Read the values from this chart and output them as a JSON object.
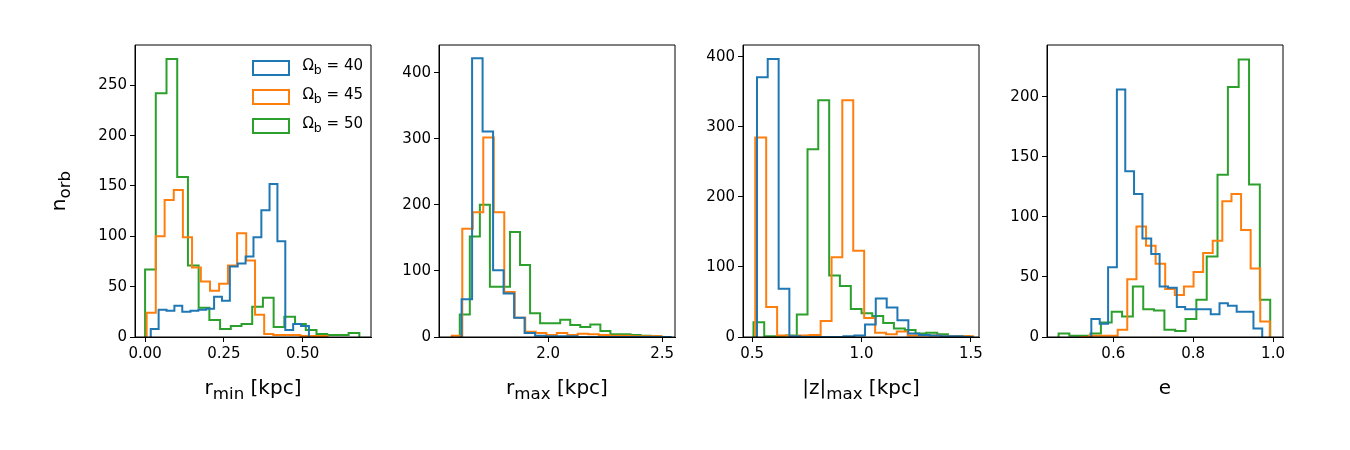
{
  "chart_data": [
    {
      "type": "histogram",
      "xlabel": "r$_{min}$ [kpc]",
      "ylabel": "n$_{orb}$",
      "legend": "top right",
      "xlim": [
        -0.032,
        0.717
      ],
      "ylim": [
        0,
        290
      ],
      "xticks": [
        {
          "value": 0,
          "label": "0.00"
        },
        0.25,
        {
          "value": 0.5,
          "label": "0.50"
        }
      ],
      "yticks": [
        0,
        50,
        100,
        150,
        200,
        250
      ],
      "bins": [
        0.018,
        0.043,
        0.068,
        0.093,
        0.118,
        0.144,
        0.169,
        0.194,
        0.219,
        0.244,
        0.269,
        0.294,
        0.319,
        0.344,
        0.369,
        0.395,
        0.42,
        0.445,
        0.47,
        0.495,
        0.52
      ],
      "series": [
        {
          "name": "Ω$_{b}$ = 40",
          "color": "#1f77b4",
          "values": [
            8,
            27,
            26,
            31,
            25,
            26,
            27,
            28,
            40,
            36,
            70,
            73,
            80,
            99,
            126,
            152,
            95,
            7,
            13,
            11
          ]
        },
        {
          "name": "Ω$_{b}$ = 45",
          "color": "#ff7f0e",
          "bins": [
            0.005,
            0.034,
            0.062,
            0.091,
            0.12,
            0.149,
            0.177,
            0.206,
            0.235,
            0.263,
            0.292,
            0.321,
            0.349,
            0.378,
            0.407,
            0.436,
            0.464,
            0.493,
            0.522,
            0.55,
            0.579
          ],
          "values": [
            24,
            100,
            136,
            146,
            99,
            69,
            55,
            46,
            53,
            71,
            103,
            76,
            22,
            3,
            2,
            2,
            2,
            1,
            1,
            1
          ]
        },
        {
          "name": "Ω$_{b}$ = 50",
          "color": "#2ca02c",
          "bins": [
            0,
            0.034,
            0.068,
            0.102,
            0.136,
            0.17,
            0.204,
            0.238,
            0.272,
            0.306,
            0.34,
            0.374,
            0.408,
            0.442,
            0.476,
            0.51,
            0.544,
            0.578,
            0.612,
            0.646,
            0.68
          ],
          "values": [
            67,
            242,
            276,
            159,
            71,
            29,
            17,
            8,
            11,
            13,
            30,
            39,
            10,
            20,
            13,
            7,
            3,
            2,
            2,
            4
          ]
        }
      ]
    },
    {
      "type": "histogram",
      "xlabel": "r$_{max}$ [kpc]",
      "xlim": [
        1.522,
        2.556
      ],
      "ylim": [
        0,
        442
      ],
      "xticks": [
        {
          "value": 2,
          "label": "2.0"
        },
        2.5
      ],
      "yticks": [
        0,
        100,
        200,
        300,
        400
      ],
      "bins": [
        1.621,
        1.667,
        1.713,
        1.759,
        1.805,
        1.851,
        1.897,
        1.943,
        1.989,
        2.035,
        2.081,
        2.127,
        2.173,
        2.219,
        2.265,
        2.311,
        2.357,
        2.403,
        2.449,
        2.495,
        2.541
      ],
      "series": [
        {
          "color": "#1f77b4",
          "values": [
            57,
            422,
            311,
            101,
            66,
            29,
            6,
            2,
            1,
            1,
            1,
            0,
            0,
            0,
            0,
            0,
            0,
            0,
            0,
            0
          ]
        },
        {
          "color": "#ff7f0e",
          "bins": [
            1.578,
            1.624,
            1.67,
            1.716,
            1.762,
            1.808,
            1.854,
            1.9,
            1.946,
            1.992,
            2.038,
            2.084,
            2.13,
            2.176,
            2.222,
            2.268,
            2.314,
            2.36,
            2.406,
            2.452,
            2.498
          ],
          "values": [
            2,
            164,
            189,
            302,
            189,
            68,
            29,
            8,
            6,
            3,
            6,
            3,
            5,
            4,
            3,
            2,
            2,
            1,
            1,
            1
          ]
        },
        {
          "color": "#2ca02c",
          "bins": [
            1.613,
            1.657,
            1.701,
            1.745,
            1.789,
            1.833,
            1.877,
            1.921,
            1.965,
            2.009,
            2.053,
            2.097,
            2.141,
            2.185,
            2.229,
            2.273,
            2.317,
            2.361,
            2.405,
            2.449,
            2.493
          ],
          "values": [
            34,
            152,
            200,
            76,
            76,
            159,
            109,
            36,
            21,
            21,
            26,
            18,
            15,
            19,
            9,
            4,
            4,
            3,
            2,
            1
          ]
        }
      ]
    },
    {
      "type": "histogram",
      "xlabel": "|z|$_{max}$ [kpc]",
      "xlim": [
        0.458,
        1.537
      ],
      "ylim": [
        0,
        417
      ],
      "xticks": [
        0.5,
        {
          "value": 1,
          "label": "1.0"
        },
        1.5
      ],
      "yticks": [
        0,
        100,
        200,
        300,
        400
      ],
      "bins": [
        0.522,
        0.571,
        0.621,
        0.67,
        0.72,
        0.769,
        0.818,
        0.868,
        0.917,
        0.967,
        1.016,
        1.065,
        1.115,
        1.164,
        1.214,
        1.263,
        1.312,
        1.362,
        1.411,
        1.461,
        1.51
      ],
      "series": [
        {
          "color": "#1f77b4",
          "values": [
            371,
            397,
            69,
            1,
            0,
            0,
            0,
            0,
            1,
            2,
            18,
            55,
            42,
            24,
            5,
            3,
            2,
            1,
            1,
            0
          ]
        },
        {
          "color": "#ff7f0e",
          "bins": [
            0.514,
            0.564,
            0.614,
            0.663,
            0.713,
            0.763,
            0.813,
            0.863,
            0.912,
            0.962,
            1.012,
            1.062,
            1.112,
            1.161,
            1.211,
            1.261,
            1.311,
            1.361,
            1.41,
            1.46,
            1.51
          ],
          "values": [
            285,
            43,
            2,
            1,
            2,
            3,
            23,
            114,
            338,
            123,
            27,
            6,
            4,
            8,
            2,
            2,
            2,
            1,
            1,
            1
          ]
        },
        {
          "color": "#2ca02c",
          "bins": [
            0.506,
            0.555,
            0.605,
            0.654,
            0.704,
            0.753,
            0.802,
            0.852,
            0.901,
            0.951,
            1.0,
            1.049,
            1.099,
            1.148,
            1.198,
            1.247,
            1.296,
            1.346,
            1.395,
            1.445,
            1.494
          ],
          "values": [
            21,
            1,
            1,
            2,
            32,
            268,
            338,
            88,
            73,
            40,
            34,
            30,
            20,
            12,
            10,
            5,
            6,
            4,
            1,
            1
          ]
        }
      ]
    },
    {
      "type": "histogram",
      "xlabel": "e",
      "xlim": [
        0.434,
        1.025
      ],
      "ylim": [
        0,
        243
      ],
      "xticks": [
        0.6,
        0.8,
        {
          "value": 1,
          "label": "1.0"
        }
      ],
      "yticks": [
        0,
        50,
        100,
        150,
        200
      ],
      "bins": [
        0.545,
        0.566,
        0.587,
        0.609,
        0.63,
        0.652,
        0.673,
        0.695,
        0.716,
        0.737,
        0.759,
        0.78,
        0.802,
        0.823,
        0.844,
        0.866,
        0.887,
        0.909,
        0.93,
        0.951,
        0.973
      ],
      "series": [
        {
          "color": "#1f77b4",
          "values": [
            15,
            11,
            58,
            206,
            138,
            119,
            82,
            69,
            42,
            41,
            25,
            23,
            23,
            23,
            19,
            28,
            26,
            21,
            21,
            7
          ]
        },
        {
          "color": "#ff7f0e",
          "bins": [
            0.516,
            0.539,
            0.563,
            0.587,
            0.611,
            0.635,
            0.658,
            0.682,
            0.706,
            0.73,
            0.754,
            0.777,
            0.801,
            0.825,
            0.849,
            0.873,
            0.896,
            0.92,
            0.944,
            0.968,
            0.992
          ],
          "values": [
            0,
            1,
            1,
            1,
            6,
            48,
            92,
            76,
            61,
            40,
            35,
            42,
            54,
            70,
            80,
            113,
            119,
            89,
            57,
            13
          ]
        },
        {
          "color": "#2ca02c",
          "bins": [
            0.463,
            0.49,
            0.516,
            0.543,
            0.569,
            0.596,
            0.622,
            0.649,
            0.675,
            0.702,
            0.728,
            0.755,
            0.781,
            0.808,
            0.834,
            0.861,
            0.887,
            0.914,
            0.94,
            0.967,
            0.993
          ],
          "values": [
            3,
            1,
            1,
            3,
            12,
            21,
            17,
            42,
            23,
            22,
            6,
            5,
            15,
            31,
            67,
            135,
            208,
            231,
            127,
            31
          ]
        }
      ]
    }
  ]
}
